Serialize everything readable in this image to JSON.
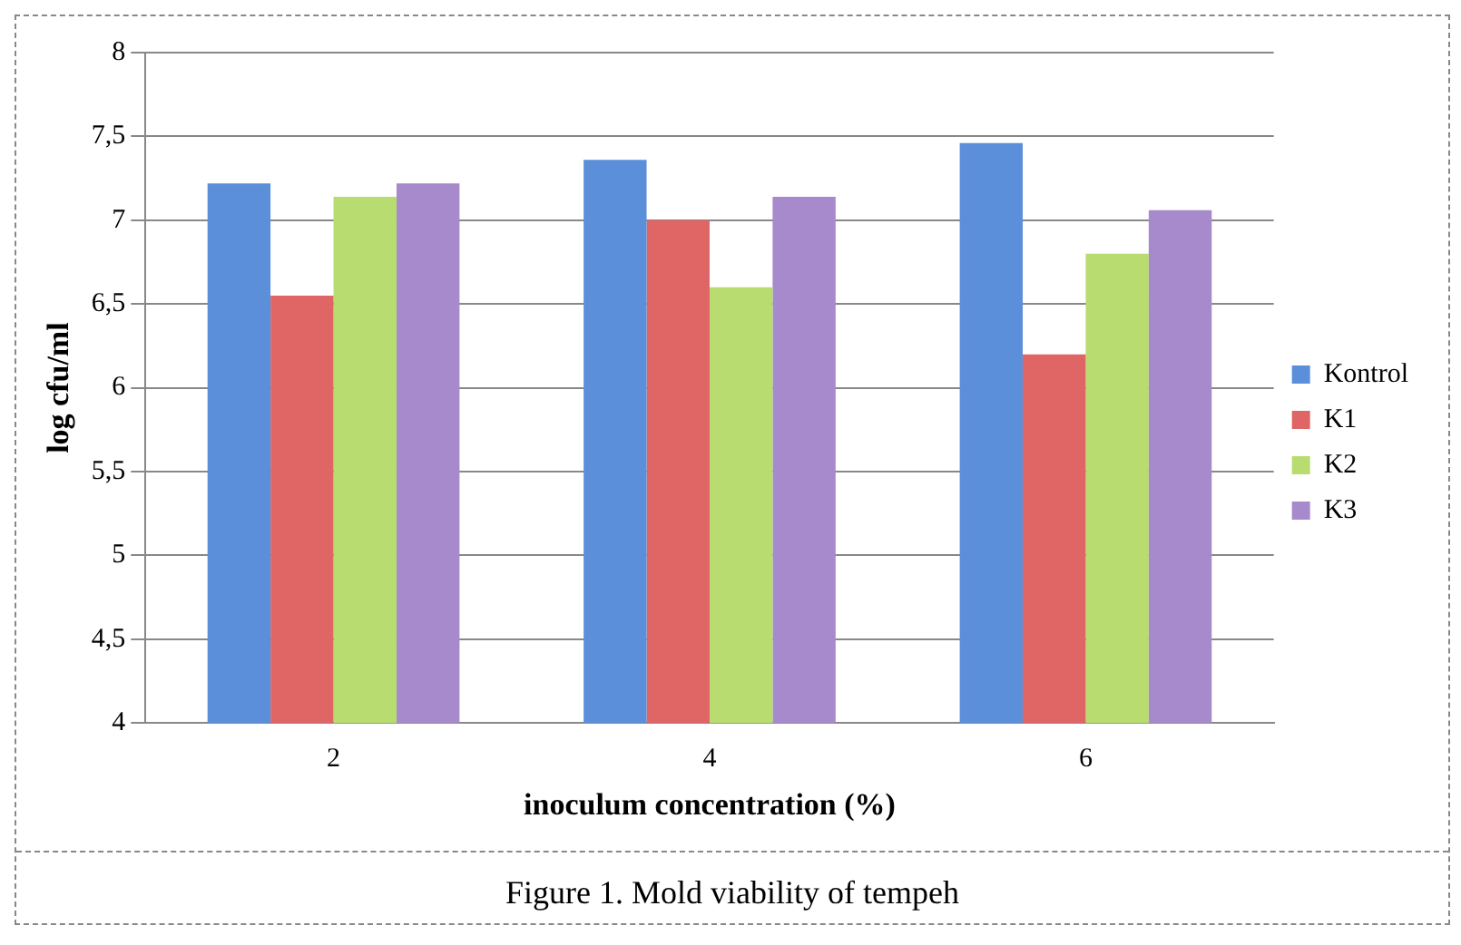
{
  "chart_data": {
    "type": "bar",
    "xlabel": "inoculum concentration (%)",
    "ylabel": "log cfu/ml",
    "categories": [
      "2",
      "4",
      "6"
    ],
    "series": [
      {
        "name": "Kontrol",
        "color": "#5b8fd9",
        "values": [
          7.22,
          7.36,
          7.46
        ]
      },
      {
        "name": "K1",
        "color": "#e06666",
        "values": [
          6.55,
          7.0,
          6.2
        ]
      },
      {
        "name": "K2",
        "color": "#b8dc70",
        "values": [
          7.14,
          6.6,
          6.8
        ]
      },
      {
        "name": "K3",
        "color": "#a68acb",
        "values": [
          7.22,
          7.14,
          7.06
        ]
      }
    ],
    "ylim": [
      4,
      8
    ],
    "yticks": [
      4,
      {
        "value": 4.5,
        "label": "4,5"
      },
      5,
      {
        "value": 5.5,
        "label": "5,5"
      },
      6,
      {
        "value": 6.5,
        "label": "6,5"
      },
      7,
      {
        "value": 7.5,
        "label": "7,5"
      },
      8
    ],
    "grid": "y",
    "legend": "right",
    "annotations": [
      "Figure 1. Mold viability of tempeh"
    ]
  }
}
